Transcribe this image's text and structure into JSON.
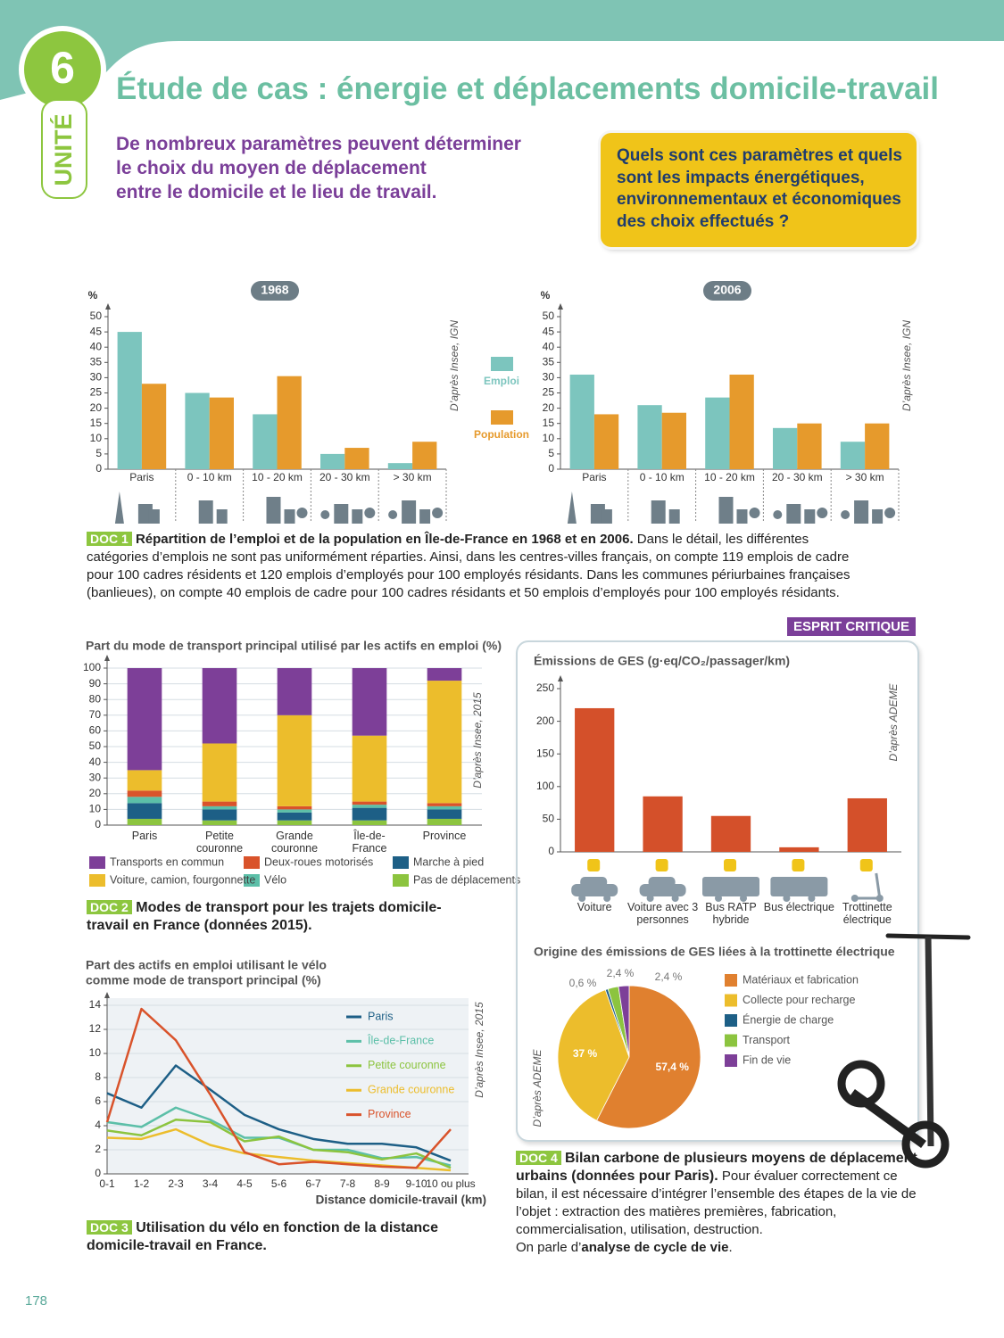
{
  "header": {
    "unit_number": "6",
    "unit_label": "UNITÉ",
    "title": "Étude de cas : énergie et déplacements domicile-travail",
    "intro": [
      "De nombreux paramètres peuvent déterminer",
      "le choix du moyen de déplacement",
      "entre le domicile et le lieu de travail."
    ],
    "question": [
      "Quels sont ces paramètres et quels",
      "sont les impacts énergétiques,",
      "environnementaux et économiques",
      "des choix effectués ?"
    ]
  },
  "docs": [
    {
      "label": "DOC 1",
      "bold": "Répartition de l’emploi et de la population en Île-de-France en 1968 et en 2006.",
      "text": "Dans le détail, les différentes catégories d’emplois ne sont pas uniformément réparties. Ainsi, dans les centres-villes français, on compte 119 emplois de cadre pour 100 cadres résidents et 120 emplois d’employés pour 100 employés résidants. Dans les communes périurbaines françaises (banlieues), on compte 40 emplois de cadre pour 100 cadres résidants et 50 emplois d’employés pour 100 employés résidants."
    },
    {
      "label": "DOC 2",
      "bold": "Modes de transport pour les trajets domicile-travail en France (données 2015)."
    },
    {
      "label": "DOC 3",
      "bold": "Utilisation du vélo en fonction de la distance domicile-travail en France."
    },
    {
      "label": "DOC 4",
      "bold": "Bilan carbone de plusieurs moyens de déplacement urbains (données pour Paris).",
      "text": "Pour évaluer correctement ce bilan, il est nécessaire d’intégrer l’ensemble des étapes de la vie de l’objet : extraction des matières premières, fabrication, commercialisation, utilisation, destruction.",
      "text2": "On parle d’",
      "bold2": "analyse de cycle de vie",
      "text3": "."
    }
  ],
  "badge": "ESPRIT CRITIQUE",
  "page_number": "178",
  "chart_data": [
    {
      "type": "bar",
      "title": "1968",
      "y_label": "%",
      "source": "D’après Insee, IGN",
      "categories": [
        "Paris",
        "0 - 10 km",
        "10 - 20 km",
        "20 - 30 km",
        "> 30 km"
      ],
      "series": [
        {
          "name": "Emploi",
          "color": "#7cc5be",
          "values": [
            45,
            25,
            18,
            5,
            2
          ]
        },
        {
          "name": "Population",
          "color": "#e69a2c",
          "values": [
            28,
            23.5,
            30.5,
            7,
            9
          ]
        }
      ],
      "ylim": [
        0,
        50
      ],
      "yticks": [
        0,
        5,
        10,
        15,
        20,
        25,
        30,
        35,
        40,
        45,
        50
      ]
    },
    {
      "type": "bar",
      "title": "2006",
      "y_label": "%",
      "source": "D’après Insee, IGN",
      "categories": [
        "Paris",
        "0 - 10 km",
        "10 - 20 km",
        "20 - 30 km",
        "> 30 km"
      ],
      "series": [
        {
          "color": "#7cc5be",
          "values": [
            31,
            21,
            23.5,
            13.5,
            9
          ]
        },
        {
          "color": "#e69a2c",
          "values": [
            18,
            18.5,
            31,
            15,
            15
          ]
        }
      ],
      "ylim": [
        0,
        50
      ],
      "yticks": [
        0,
        5,
        10,
        15,
        20,
        25,
        30,
        35,
        40,
        45,
        50
      ]
    },
    {
      "type": "stacked_bar",
      "title": "Part du mode de transport principal utilisé par les actifs en emploi (%)",
      "source": "D’après Insee, 2015",
      "categories": [
        "Paris",
        "Petite couronne",
        "Grande couronne",
        "Île-de-France",
        "Province"
      ],
      "series": [
        {
          "name": "Pas de déplacements",
          "color": "#8cc43f",
          "values": [
            4,
            3,
            3,
            3,
            4
          ]
        },
        {
          "name": "Marche à pied",
          "color": "#1d5f86",
          "values": [
            10,
            7,
            5,
            8,
            6
          ]
        },
        {
          "name": "Vélo",
          "color": "#5cbfa8",
          "values": [
            4,
            2,
            2,
            2,
            2
          ]
        },
        {
          "name": "Deux-roues motorisés",
          "color": "#d9532b",
          "values": [
            4,
            3,
            2,
            2,
            2
          ]
        },
        {
          "name": "Voiture, camion, fourgonnette",
          "color": "#ecbd2c",
          "values": [
            13,
            37,
            58,
            42,
            78
          ]
        },
        {
          "name": "Transports en commun",
          "color": "#7d3f98",
          "values": [
            65,
            48,
            30,
            43,
            8
          ]
        }
      ],
      "ylim": [
        0,
        100
      ],
      "yticks": [
        0,
        10,
        20,
        30,
        40,
        50,
        60,
        70,
        80,
        90,
        100
      ],
      "grid": true
    },
    {
      "type": "line",
      "title": [
        "Part des actifs en emploi utilisant le vélo",
        "comme mode de transport principal (%)"
      ],
      "x_label": "Distance domicile-travail (km)",
      "source": "D’après Insee, 2015",
      "categories": [
        "0-1",
        "1-2",
        "2-3",
        "3-4",
        "4-5",
        "5-6",
        "6-7",
        "7-8",
        "8-9",
        "9-10",
        "10 ou plus"
      ],
      "series": [
        {
          "name": "Paris",
          "color": "#1d5f86",
          "values": [
            6.7,
            5.5,
            9,
            7,
            4.9,
            3.7,
            2.9,
            2.5,
            2.5,
            2.2,
            1.1
          ]
        },
        {
          "name": "Île-de-France",
          "color": "#5cbfa8",
          "values": [
            4.3,
            3.9,
            5.5,
            4.5,
            3,
            3,
            2,
            2,
            1.3,
            1.4,
            0.7
          ]
        },
        {
          "name": "Petite couronne",
          "color": "#8cc43f",
          "values": [
            3.6,
            3.2,
            4.5,
            4.3,
            2.7,
            3.1,
            2,
            1.8,
            1.2,
            1.7,
            0.5
          ]
        },
        {
          "name": "Grande couronne",
          "color": "#ecbd2c",
          "values": [
            3,
            2.9,
            3.7,
            2.4,
            1.7,
            1.4,
            1.1,
            0.9,
            0.7,
            0.5,
            0.3
          ]
        },
        {
          "name": "Province",
          "color": "#d9532b",
          "values": [
            4.3,
            13.7,
            11.1,
            6.6,
            1.8,
            0.8,
            1,
            0.8,
            0.6,
            0.5,
            3.7
          ]
        }
      ],
      "ylim": [
        0,
        14
      ],
      "yticks": [
        0,
        2,
        4,
        6,
        8,
        10,
        12,
        14
      ],
      "grid": true
    },
    {
      "type": "bar",
      "title": "Émissions de GES (g·eq/CO₂/passager/km)",
      "source": "D’après ADEME",
      "categories": [
        "Voiture",
        "Voiture avec 3 personnes",
        "Bus RATP hybride",
        "Bus électrique",
        "Trottinette électrique"
      ],
      "values": [
        220,
        85,
        55,
        7,
        82
      ],
      "color": "#d4502a",
      "ylim": [
        0,
        250
      ],
      "yticks": [
        0,
        50,
        100,
        150,
        200,
        250
      ]
    },
    {
      "type": "pie",
      "title": "Origine des émissions de GES liées à la trottinette électrique",
      "source": "D’après ADEME",
      "categories": [
        "Matériaux et fabrication",
        "Collecte pour recharge",
        "Énergie de charge",
        "Transport",
        "Fin de vie"
      ],
      "values": [
        57.4,
        37,
        0.6,
        2.4,
        2.4
      ],
      "value_labels": [
        "57,4 %",
        "37 %",
        "0,6 %",
        "2,4 %",
        "2,4 %"
      ],
      "colors": [
        "#e0802f",
        "#ecbd2c",
        "#1d5f86",
        "#8cc43f",
        "#7d3f98"
      ]
    }
  ]
}
